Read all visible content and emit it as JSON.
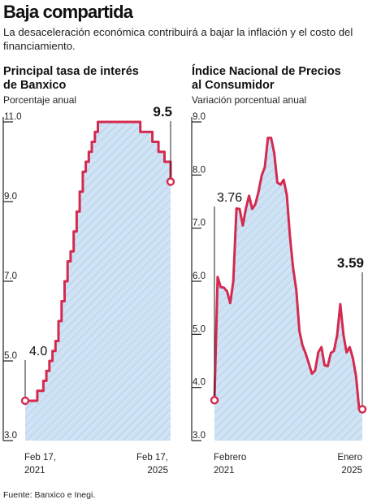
{
  "headline": "Baja compartida",
  "subhead": "La desaceleración económica contribuirá a bajar la inflación y el costo del financiamiento.",
  "source": "Fuente: Banxico e Inegi.",
  "colors": {
    "line": "#d42a4f",
    "fill": "#cfe3f5",
    "hatch": "#9fbfdc",
    "axis": "#222222"
  },
  "chart_data": [
    {
      "type": "line",
      "title_lines": [
        "Principal tasa de interés",
        "de Banxico"
      ],
      "subtitle": "Porcentaje anual",
      "yticks": [
        "11.0",
        "9.0",
        "7.0",
        "5.0",
        "3.0"
      ],
      "ylim": [
        3.0,
        11.0
      ],
      "xticks": [
        [
          "Feb 17,",
          "2021"
        ],
        [
          "Feb 17,",
          "2025"
        ]
      ],
      "start_label": "4.0",
      "end_label": "9.5",
      "series": [
        {
          "step": true,
          "x": [
            0,
            1,
            2,
            3,
            4,
            5,
            6,
            7,
            8,
            9,
            10,
            11,
            12,
            13,
            14,
            15,
            16,
            17,
            18,
            19,
            20,
            21,
            22,
            23,
            24,
            25,
            26,
            27,
            28,
            29,
            30,
            31,
            32,
            33,
            34,
            35,
            36,
            37,
            38,
            39,
            40,
            41,
            42,
            43,
            44,
            45,
            46,
            47,
            48
          ],
          "y": [
            4.0,
            4.0,
            4.0,
            4.0,
            4.25,
            4.25,
            4.5,
            4.75,
            5.0,
            5.25,
            5.5,
            6.0,
            6.5,
            7.0,
            7.5,
            7.75,
            8.25,
            8.75,
            9.25,
            9.75,
            10.0,
            10.25,
            10.5,
            10.75,
            11.0,
            11.0,
            11.0,
            11.0,
            11.0,
            11.0,
            11.0,
            11.0,
            11.0,
            11.0,
            11.0,
            11.0,
            11.0,
            11.0,
            10.75,
            10.75,
            10.75,
            10.75,
            10.5,
            10.5,
            10.25,
            10.25,
            10.0,
            10.0,
            9.5
          ]
        }
      ]
    },
    {
      "type": "line",
      "title_lines": [
        "Índice Nacional de Precios",
        "al Consumidor"
      ],
      "subtitle": "Variación porcentual anual",
      "yticks": [
        "9.0",
        "8.0",
        "7.0",
        "6.0",
        "5.0",
        "4.0",
        "3.0"
      ],
      "ylim": [
        3.0,
        9.0
      ],
      "xticks": [
        [
          "Febrero",
          "2021"
        ],
        [
          "Enero",
          "2025"
        ]
      ],
      "start_label": "3.76",
      "end_label": "3.59",
      "series": [
        {
          "step": false,
          "x": [
            0,
            1,
            2,
            3,
            4,
            5,
            6,
            7,
            8,
            9,
            10,
            11,
            12,
            13,
            14,
            15,
            16,
            17,
            18,
            19,
            20,
            21,
            22,
            23,
            24,
            25,
            26,
            27,
            28,
            29,
            30,
            31,
            32,
            33,
            34,
            35,
            36,
            37,
            38,
            39,
            40,
            41,
            42,
            43,
            44,
            45,
            46,
            47
          ],
          "y": [
            3.76,
            6.08,
            5.89,
            5.88,
            5.81,
            5.59,
            6.0,
            7.37,
            7.36,
            7.05,
            7.37,
            7.61,
            7.36,
            7.45,
            7.68,
            7.99,
            8.15,
            8.7,
            8.7,
            8.41,
            7.86,
            7.82,
            7.91,
            7.62,
            6.85,
            6.25,
            5.84,
            5.06,
            4.79,
            4.64,
            4.45,
            4.26,
            4.32,
            4.66,
            4.76,
            4.42,
            4.4,
            4.65,
            4.69,
            4.98,
            5.57,
            4.99,
            4.66,
            4.76,
            4.55,
            4.21,
            3.59,
            3.59
          ]
        }
      ]
    }
  ]
}
